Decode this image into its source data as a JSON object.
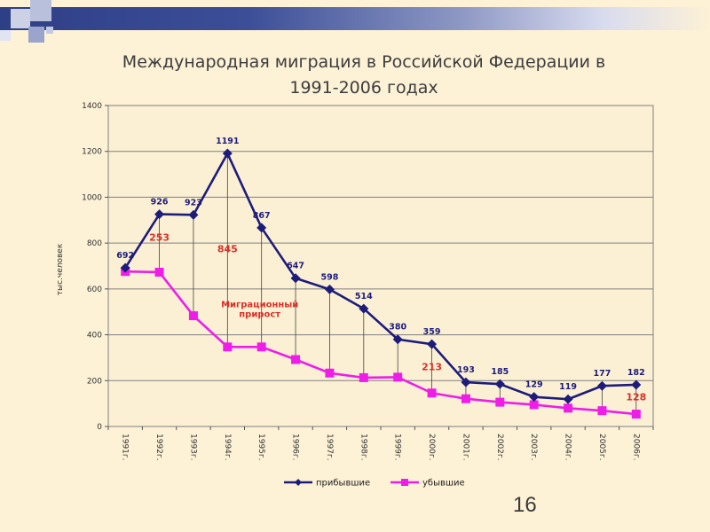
{
  "title": {
    "line1": "Международная миграция в Российской Федерации в",
    "line2": "1991-2006 годах"
  },
  "page_number": "16",
  "colors": {
    "arrivals": "#1e1c7a",
    "departures": "#ee1ee8",
    "net_label": "#d8312a",
    "plot_bg": "#fbf0d4",
    "grid": "#7f7f7f"
  },
  "chart_data": {
    "type": "line",
    "title": "Международная миграция в Российской Федерации в 1991-2006 годах",
    "xlabel": "",
    "ylabel": "тыс.человек",
    "ylim": [
      0,
      1400
    ],
    "yticks": [
      0,
      200,
      400,
      600,
      800,
      1000,
      1200,
      1400
    ],
    "grid": true,
    "legend_position": "bottom",
    "categories": [
      "1991г.",
      "1992г.",
      "1993г.",
      "1994г.",
      "1995г.",
      "1996г.",
      "1997г.",
      "1998г.",
      "1999г.",
      "2000г.",
      "2001г.",
      "2002г.",
      "2003г.",
      "2004г.",
      "2005г.",
      "2006г."
    ],
    "series": [
      {
        "name": "прибывшие",
        "color": "#1e1c7a",
        "marker": "diamond",
        "values": [
          692,
          926,
          923,
          1191,
          867,
          647,
          598,
          514,
          380,
          359,
          193,
          185,
          129,
          119,
          177,
          182
        ],
        "data_labels": [
          "692",
          "926",
          "923",
          "1191",
          "867",
          "647",
          "598",
          "514",
          "380",
          "359",
          "193",
          "185",
          "129",
          "119",
          "177",
          "182"
        ]
      },
      {
        "name": "убывшие",
        "color": "#ee1ee8",
        "marker": "square",
        "values": [
          676,
          673,
          483,
          347,
          347,
          292,
          233,
          213,
          215,
          146,
          121,
          106,
          95,
          80,
          69,
          54
        ]
      }
    ],
    "annotations": [
      {
        "text": "253",
        "x": "1992г.",
        "y": 810,
        "color": "#d8312a"
      },
      {
        "text": "845",
        "x": "1994г.",
        "y": 760,
        "color": "#d8312a"
      },
      {
        "text": "213",
        "x": "2000г.",
        "y": 245,
        "color": "#d8312a"
      },
      {
        "text": "128",
        "x": "2006г.",
        "y": 115,
        "color": "#d8312a"
      },
      {
        "text": "Миграционный прирост",
        "x": "1995г.",
        "y": 520,
        "color": "#d8312a"
      }
    ]
  }
}
